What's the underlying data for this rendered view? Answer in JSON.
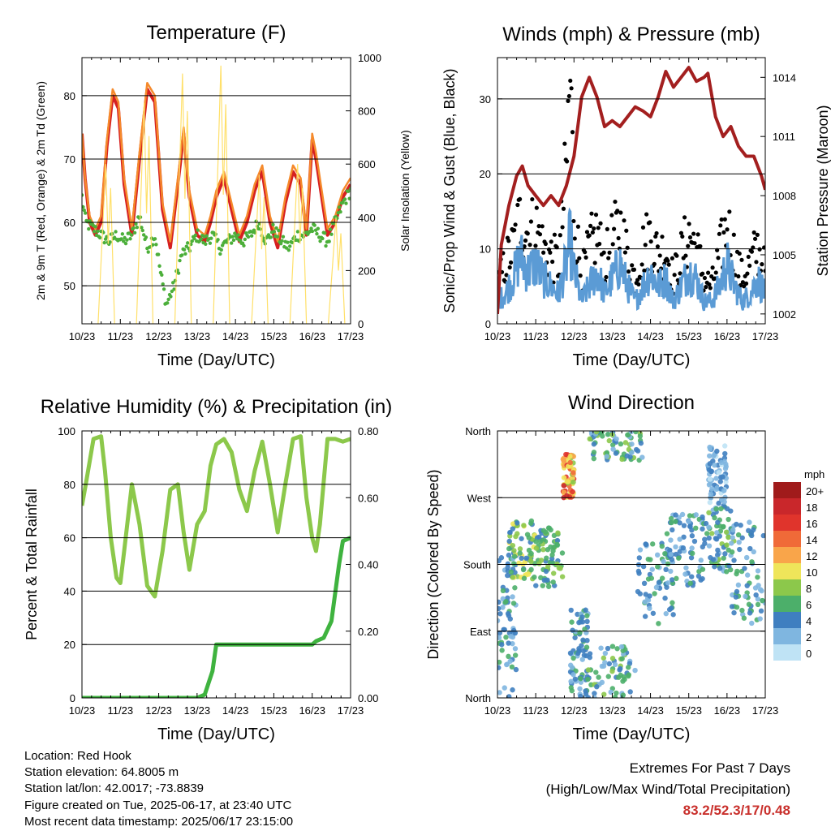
{
  "page": {
    "info": {
      "location": "Location: Red Hook",
      "elevation": "Station elevation: 64.8005 m",
      "latlon": "Station lat/lon: 42.0017; -73.8839",
      "created": "Figure created on Tue, 2025-06-17, at 23:40 UTC",
      "recent": "Most recent data timestamp: 2025/06/17 23:15:00"
    },
    "extremes": {
      "title": "Extremes For Past 7 Days",
      "subtitle": "(High/Low/Max Wind/Total Precipitation)",
      "values": "83.2/52.3/17/0.48"
    }
  },
  "colors": {
    "temp2m": "#d62020",
    "temp9m": "#f58a2c",
    "dewpoint": "#4caf3a",
    "solar": "#ffe06a",
    "gust": "#000000",
    "wind": "#5b9bd5",
    "pressure": "#a31f1f",
    "rh": "#8cc84b",
    "precip": "#3fb33f"
  },
  "chart_data": [
    {
      "id": "temperature",
      "type": "line",
      "title": "Temperature (F)",
      "xlabel": "Time (Day/UTC)",
      "ylabel": "2m & 9m T (Red, Orange) & 2m Td (Green)",
      "ylabel_right": "Solar Insolation (Yellow)",
      "x_ticks": [
        "10/23",
        "11/23",
        "12/23",
        "13/23",
        "14/23",
        "15/23",
        "16/23",
        "17/23"
      ],
      "xlim": [
        0,
        7
      ],
      "ylim": [
        44,
        86
      ],
      "y_ticks": [
        50,
        60,
        70,
        80
      ],
      "ylim_right": [
        0,
        1000
      ],
      "y_ticks_right": [
        0,
        200,
        400,
        600,
        800,
        1000
      ],
      "grid": "horizontal",
      "series": [
        {
          "key": "t2m",
          "color_key": "temp2m",
          "axis": "left",
          "style": "thick",
          "x": [
            0,
            0.08,
            0.2,
            0.35,
            0.5,
            0.65,
            0.8,
            0.95,
            1.1,
            1.3,
            1.5,
            1.7,
            1.9,
            2.1,
            2.3,
            2.5,
            2.65,
            2.8,
            3,
            3.2,
            3.35,
            3.5,
            3.7,
            3.9,
            4.1,
            4.3,
            4.5,
            4.7,
            4.9,
            5.1,
            5.3,
            5.5,
            5.7,
            5.85,
            6,
            6.1,
            6.25,
            6.4,
            6.6,
            6.8,
            7
          ],
          "y": [
            74,
            67,
            60,
            58,
            60,
            72,
            80,
            78,
            66,
            58,
            70,
            81,
            79,
            62,
            56,
            66,
            74,
            64,
            58,
            57,
            60,
            64,
            67,
            62,
            57,
            60,
            65,
            68,
            60,
            56,
            63,
            68,
            66,
            58,
            73,
            70,
            64,
            58,
            60,
            64,
            66
          ]
        },
        {
          "key": "t9m",
          "color_key": "temp9m",
          "axis": "left",
          "style": "thin",
          "x": [
            0,
            0.08,
            0.2,
            0.35,
            0.5,
            0.65,
            0.8,
            0.95,
            1.1,
            1.3,
            1.5,
            1.7,
            1.9,
            2.1,
            2.3,
            2.5,
            2.65,
            2.8,
            3,
            3.2,
            3.35,
            3.5,
            3.7,
            3.9,
            4.1,
            4.3,
            4.5,
            4.7,
            4.9,
            5.1,
            5.3,
            5.5,
            5.7,
            5.85,
            6,
            6.1,
            6.25,
            6.4,
            6.6,
            6.8,
            7
          ],
          "y": [
            74,
            67,
            61,
            59,
            61,
            73,
            81,
            79,
            67,
            59,
            71,
            82,
            80,
            63,
            57,
            67,
            75,
            65,
            59,
            58,
            61,
            65,
            68,
            63,
            58,
            61,
            66,
            69,
            61,
            57,
            64,
            69,
            67,
            59,
            74,
            71,
            65,
            59,
            61,
            65,
            67
          ]
        },
        {
          "key": "td",
          "color_key": "dewpoint",
          "axis": "left",
          "style": "dots",
          "x": [
            0,
            0.1,
            0.3,
            0.5,
            0.7,
            0.9,
            1.1,
            1.3,
            1.5,
            1.7,
            1.9,
            2.05,
            2.2,
            2.4,
            2.6,
            2.8,
            3,
            3.2,
            3.4,
            3.6,
            3.8,
            4,
            4.2,
            4.4,
            4.6,
            4.8,
            5,
            5.2,
            5.4,
            5.6,
            5.8,
            6,
            6.2,
            6.4,
            6.6,
            6.8,
            7
          ],
          "y": [
            64,
            60,
            59,
            58,
            57,
            58,
            57,
            58,
            61,
            56,
            58,
            52,
            47,
            50,
            55,
            56,
            58,
            57,
            58,
            56,
            57,
            58,
            57,
            58,
            60,
            57,
            59,
            57,
            56,
            58,
            58,
            59,
            58,
            57,
            60,
            63,
            65
          ]
        },
        {
          "key": "solar",
          "color_key": "solar",
          "axis": "right",
          "style": "spikes",
          "days": [
            0,
            1,
            2,
            3,
            4,
            5,
            6
          ],
          "peaks": [
            600,
            830,
            940,
            970,
            560,
            600,
            400
          ]
        }
      ]
    },
    {
      "id": "winds",
      "type": "line",
      "title": "Winds (mph) & Pressure (mb)",
      "xlabel": "Time (Day/UTC)",
      "ylabel": "Sonic/Prop Wind & Gust (Blue, Black)",
      "ylabel_right": "Station Pressure (Maroon)",
      "x_ticks": [
        "10/23",
        "11/23",
        "12/23",
        "13/23",
        "14/23",
        "15/23",
        "16/23",
        "17/23"
      ],
      "xlim": [
        0,
        7
      ],
      "ylim": [
        0,
        35.5
      ],
      "y_ticks": [
        0,
        10,
        20,
        30
      ],
      "ylim_right": [
        1001.5,
        1015
      ],
      "y_ticks_right": [
        1002,
        1005,
        1008,
        1011,
        1014
      ],
      "grid": "horizontal",
      "series": [
        {
          "key": "gust",
          "color_key": "gust",
          "axis": "left",
          "style": "dots",
          "x": [
            0,
            0.2,
            0.4,
            0.6,
            0.8,
            1.0,
            1.2,
            1.4,
            1.6,
            1.8,
            1.9,
            2.0,
            2.2,
            2.4,
            2.6,
            2.8,
            3.0,
            3.2,
            3.4,
            3.6,
            3.8,
            4.0,
            4.2,
            4.4,
            4.6,
            4.8,
            5.0,
            5.2,
            5.4,
            5.6,
            5.8,
            6.0,
            6.2,
            6.4,
            6.6,
            6.8,
            7.0
          ],
          "y": [
            5,
            8,
            10,
            14,
            12,
            13,
            10,
            9,
            8,
            20,
            33,
            15,
            6,
            10,
            12,
            8,
            11,
            13,
            9,
            6,
            10,
            12,
            9,
            10,
            6,
            9,
            12,
            10,
            6,
            5,
            9,
            13,
            9,
            6,
            8,
            10,
            7
          ]
        },
        {
          "key": "wind",
          "color_key": "wind",
          "axis": "left",
          "style": "band",
          "x": [
            0,
            0.2,
            0.4,
            0.6,
            0.8,
            1.0,
            1.2,
            1.4,
            1.6,
            1.8,
            1.9,
            2.0,
            2.2,
            2.4,
            2.6,
            2.8,
            3.0,
            3.2,
            3.4,
            3.6,
            3.8,
            4.0,
            4.2,
            4.4,
            4.6,
            4.8,
            5.0,
            5.2,
            5.4,
            5.6,
            5.8,
            6.0,
            6.2,
            6.4,
            6.6,
            6.8,
            7.0
          ],
          "y": [
            3,
            4,
            6,
            9,
            7,
            8,
            6,
            5,
            4,
            8,
            11,
            7,
            3,
            5,
            7,
            4,
            6,
            8,
            5,
            3,
            5,
            7,
            5,
            6,
            3,
            5,
            7,
            6,
            3,
            3,
            5,
            8,
            5,
            3,
            4,
            6,
            4
          ]
        },
        {
          "key": "pressure",
          "color_key": "pressure",
          "axis": "right",
          "style": "thick",
          "x": [
            0,
            0.1,
            0.3,
            0.5,
            0.65,
            0.8,
            1.0,
            1.2,
            1.4,
            1.6,
            1.8,
            2.0,
            2.2,
            2.4,
            2.6,
            2.8,
            3.0,
            3.2,
            3.4,
            3.6,
            3.8,
            4.0,
            4.2,
            4.4,
            4.6,
            4.8,
            5.0,
            5.2,
            5.4,
            5.5,
            5.7,
            5.9,
            6.1,
            6.3,
            6.5,
            6.7,
            6.9,
            7.0
          ],
          "y": [
            1002,
            1005.5,
            1007.5,
            1009,
            1009.5,
            1008.5,
            1008,
            1007.5,
            1008,
            1007.5,
            1008.5,
            1010,
            1013,
            1014,
            1013,
            1011.5,
            1011.8,
            1011.5,
            1012,
            1012.5,
            1012.3,
            1012,
            1013,
            1014.3,
            1013.5,
            1014,
            1014.5,
            1013.8,
            1014,
            1014.2,
            1012,
            1011,
            1011.5,
            1010.5,
            1010,
            1010,
            1009,
            1008.3
          ]
        }
      ]
    },
    {
      "id": "humidity",
      "type": "line",
      "title": "Relative Humidity (%) & Precipitation (in)",
      "xlabel": "Time (Day/UTC)",
      "ylabel": "Percent & Total Rainfall",
      "x_ticks": [
        "10/23",
        "11/23",
        "12/23",
        "13/23",
        "14/23",
        "15/23",
        "16/23",
        "17/23"
      ],
      "xlim": [
        0,
        7
      ],
      "ylim": [
        0,
        100
      ],
      "y_ticks": [
        0,
        20,
        40,
        60,
        80,
        100
      ],
      "ylim_right": [
        0,
        0.8
      ],
      "y_ticks_right": [
        "0.00",
        "0.20",
        "0.40",
        "0.60",
        "0.80"
      ],
      "grid": "horizontal",
      "series": [
        {
          "key": "rh",
          "color_key": "rh",
          "axis": "left",
          "style": "thick",
          "x": [
            0,
            0.1,
            0.3,
            0.5,
            0.6,
            0.75,
            0.9,
            1.0,
            1.1,
            1.3,
            1.5,
            1.7,
            1.9,
            2.1,
            2.3,
            2.5,
            2.65,
            2.8,
            3,
            3.2,
            3.35,
            3.5,
            3.7,
            3.9,
            4.1,
            4.3,
            4.5,
            4.7,
            4.9,
            5.1,
            5.3,
            5.5,
            5.7,
            5.85,
            6,
            6.1,
            6.2,
            6.4,
            6.6,
            6.8,
            7
          ],
          "y": [
            72,
            80,
            97,
            98,
            85,
            60,
            45,
            43,
            55,
            80,
            65,
            42,
            38,
            55,
            78,
            80,
            62,
            48,
            65,
            70,
            87,
            95,
            97,
            92,
            78,
            70,
            85,
            96,
            80,
            62,
            80,
            97,
            98,
            75,
            60,
            55,
            65,
            97,
            97,
            96,
            97
          ]
        },
        {
          "key": "precip",
          "color_key": "precip",
          "axis": "right",
          "style": "thick",
          "x": [
            0,
            1,
            2,
            3,
            3.2,
            3.4,
            3.5,
            4,
            5,
            5.8,
            6.0,
            6.1,
            6.3,
            6.5,
            6.7,
            6.8,
            7
          ],
          "y": [
            0,
            0,
            0,
            0,
            0.01,
            0.08,
            0.16,
            0.16,
            0.16,
            0.16,
            0.16,
            0.17,
            0.18,
            0.23,
            0.4,
            0.47,
            0.48
          ]
        }
      ]
    },
    {
      "id": "direction",
      "type": "scatter",
      "title": "Wind Direction",
      "xlabel": "Time (Day/UTC)",
      "ylabel": "Direction (Colored By Speed)",
      "x_ticks": [
        "10/23",
        "11/23",
        "12/23",
        "13/23",
        "14/23",
        "15/23",
        "16/23",
        "17/23"
      ],
      "xlim": [
        0,
        7
      ],
      "ylim": [
        0,
        360
      ],
      "y_ticks": [
        0,
        90,
        180,
        270,
        360
      ],
      "y_tick_labels": [
        "North",
        "East",
        "South",
        "West",
        "North"
      ],
      "grid": "horizontal",
      "colorbar": {
        "title": "mph",
        "labels": [
          "20+",
          "18",
          "16",
          "14",
          "12",
          "10",
          "8",
          "6",
          "4",
          "2",
          "0"
        ],
        "colors": [
          "#a01b1b",
          "#c9272b",
          "#e0342c",
          "#f06a38",
          "#f9a54a",
          "#efe55a",
          "#8cc84b",
          "#4caf6a",
          "#3f7fc0",
          "#7fb6e0",
          "#bfe3f5"
        ]
      },
      "clusters": [
        {
          "x": [
            0.0,
            0.5
          ],
          "y": [
            0,
            200
          ],
          "speed": [
            2,
            6
          ]
        },
        {
          "x": [
            0.3,
            1.0
          ],
          "y": [
            160,
            240
          ],
          "speed": [
            4,
            10
          ]
        },
        {
          "x": [
            1.0,
            1.7
          ],
          "y": [
            150,
            230
          ],
          "speed": [
            4,
            8
          ]
        },
        {
          "x": [
            1.7,
            2.0
          ],
          "y": [
            270,
            330
          ],
          "speed": [
            8,
            18
          ]
        },
        {
          "x": [
            1.9,
            2.4
          ],
          "y": [
            0,
            120
          ],
          "speed": [
            2,
            6
          ]
        },
        {
          "x": [
            2.3,
            3.6
          ],
          "y": [
            0,
            70
          ],
          "speed": [
            2,
            8
          ]
        },
        {
          "x": [
            2.4,
            3.8
          ],
          "y": [
            320,
            360
          ],
          "speed": [
            2,
            8
          ]
        },
        {
          "x": [
            3.6,
            4.6
          ],
          "y": [
            100,
            210
          ],
          "speed": [
            2,
            6
          ]
        },
        {
          "x": [
            4.4,
            5.4
          ],
          "y": [
            150,
            250
          ],
          "speed": [
            2,
            6
          ]
        },
        {
          "x": [
            5.4,
            6.2
          ],
          "y": [
            170,
            260
          ],
          "speed": [
            2,
            8
          ]
        },
        {
          "x": [
            6.1,
            7.0
          ],
          "y": [
            100,
            240
          ],
          "speed": [
            2,
            6
          ]
        },
        {
          "x": [
            5.5,
            6.0
          ],
          "y": [
            260,
            340
          ],
          "speed": [
            0,
            4
          ]
        }
      ]
    }
  ]
}
